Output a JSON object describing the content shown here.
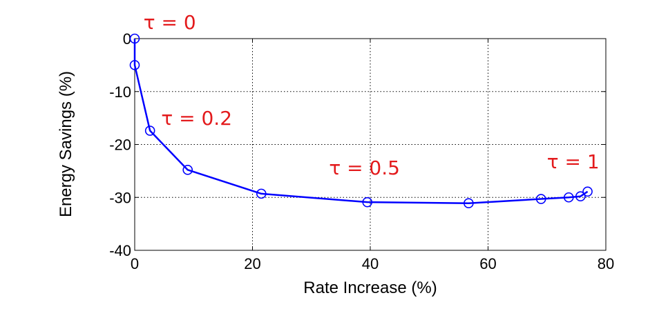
{
  "chart_data": {
    "type": "line",
    "xlabel": "Rate Increase (%)",
    "ylabel": "Energy Savings (%)",
    "xlim": [
      0,
      80
    ],
    "ylim": [
      -40,
      0
    ],
    "xticks": [
      0,
      20,
      40,
      60,
      80
    ],
    "yticks": [
      0,
      -10,
      -20,
      -30,
      -40
    ],
    "grid": true,
    "series": [
      {
        "x": [
          0,
          0,
          2.6,
          9,
          21.5,
          39.5,
          56.7,
          69,
          73.7,
          75.7,
          76.9
        ],
        "y": [
          0,
          -5,
          -17.4,
          -24.8,
          -29.3,
          -30.9,
          -31.1,
          -30.3,
          -30.0,
          -29.8,
          -28.9
        ],
        "color": "#0000ff",
        "marker": "circle"
      }
    ],
    "annotations": [
      {
        "text": "τ = 0",
        "x": 1.5,
        "y": 1.8,
        "color": "#e31a1c"
      },
      {
        "text": "τ = 0.2",
        "x": 4.5,
        "y": -16.3,
        "color": "#e31a1c"
      },
      {
        "text": "τ = 0.5",
        "x": 33,
        "y": -25.7,
        "color": "#e31a1c"
      },
      {
        "text": "τ = 1",
        "x": 70,
        "y": -24.5,
        "color": "#e31a1c"
      }
    ]
  }
}
